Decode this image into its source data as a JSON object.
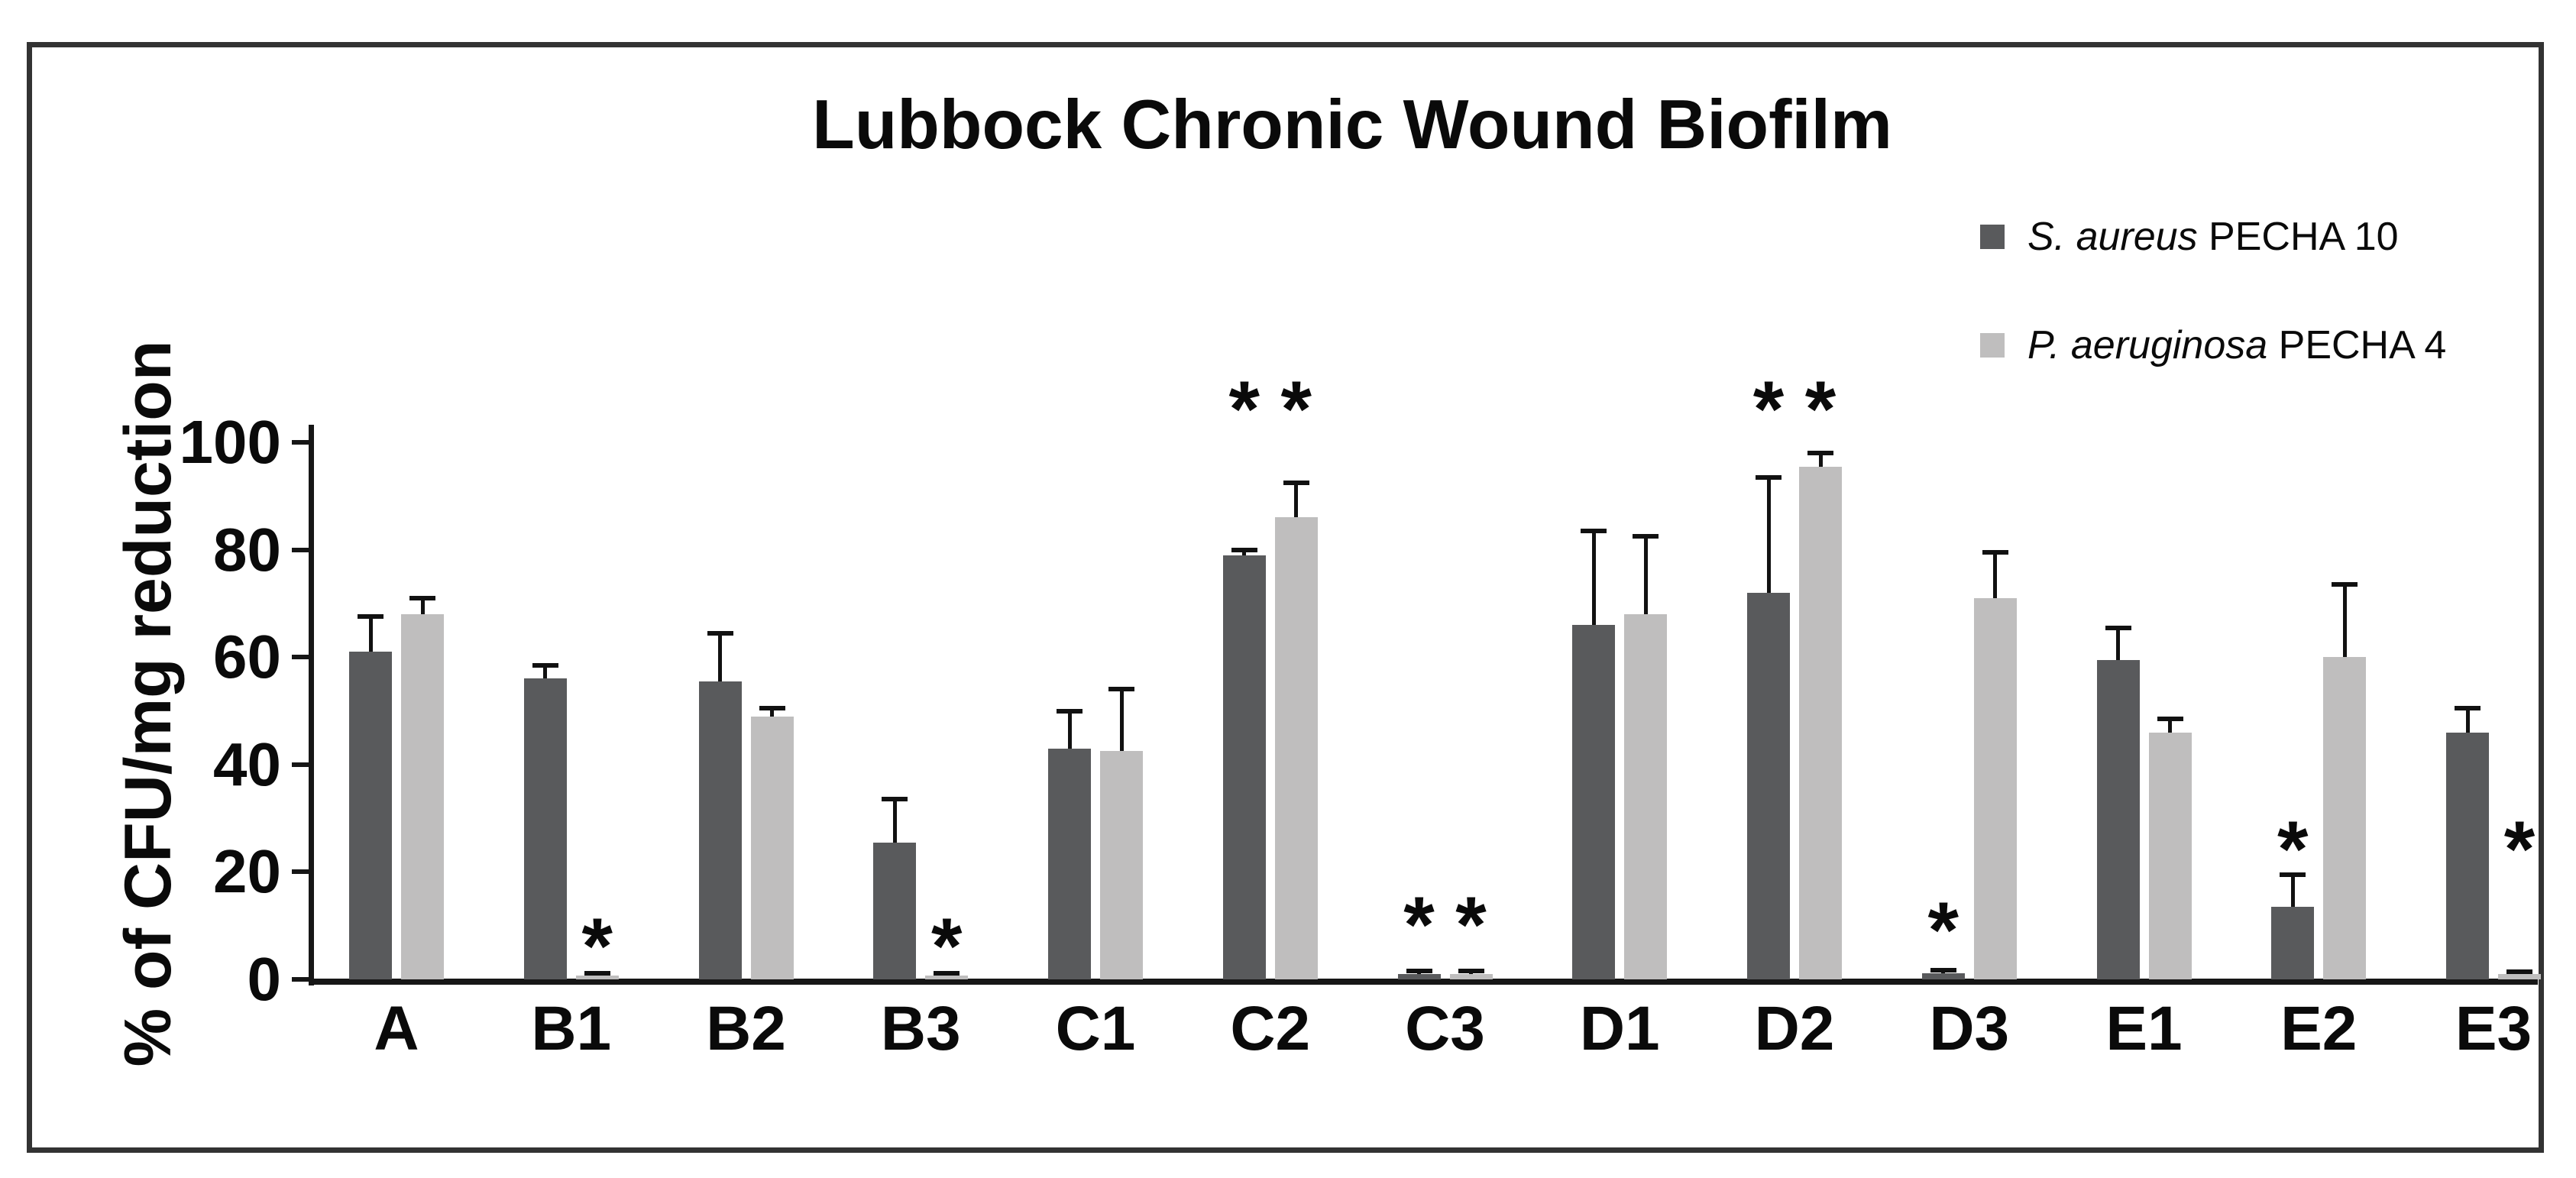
{
  "figure": {
    "title": "Lubbock Chronic Wound Biofilm",
    "background_color": "#ffffff",
    "frame_border_color": "#333333",
    "axis_color": "#161616",
    "text_color": "#0a0a0a"
  },
  "chart_data": {
    "type": "bar",
    "title": "Lubbock Chronic Wound Biofilm",
    "xlabel": "",
    "ylabel": "% of CFU/mg reduction",
    "ylim": [
      0,
      100
    ],
    "yticks": [
      0,
      20,
      40,
      60,
      80,
      100
    ],
    "grid": false,
    "legend_position": "top-right",
    "error_bars": "upper, with caps",
    "significance_marker": "*",
    "categories": [
      "A",
      "B1",
      "B2",
      "B3",
      "C1",
      "C2",
      "C3",
      "D1",
      "D2",
      "D3",
      "E1",
      "E2",
      "E3"
    ],
    "series": [
      {
        "name": "S. aureus PECHA 10",
        "name_italic": "S. aureus",
        "name_rest": " PECHA 10",
        "color": "#595a5c",
        "values": [
          61,
          56,
          55.5,
          25.5,
          43,
          79,
          1,
          66,
          72,
          1.2,
          59.5,
          13.5,
          46
        ],
        "errors": [
          6.5,
          2.5,
          9,
          8,
          7,
          1,
          0.5,
          17.5,
          21.5,
          0.5,
          6,
          6,
          4.5
        ],
        "significance_y": [
          null,
          null,
          null,
          null,
          null,
          107,
          11,
          null,
          107,
          10,
          null,
          25,
          null
        ]
      },
      {
        "name": "P. aeruginosa PECHA 4",
        "name_italic": "P. aeruginosa",
        "name_rest": " PECHA 4",
        "color": "#bfbebe",
        "values": [
          68,
          0.7,
          49,
          0.7,
          42.5,
          86,
          1,
          68,
          95.5,
          71,
          46,
          60,
          1
        ],
        "errors": [
          3,
          0.4,
          1.5,
          0.4,
          11.5,
          6.5,
          0.5,
          14.5,
          2.5,
          8.5,
          2.5,
          13.5,
          0.4
        ],
        "significance_y": [
          null,
          7,
          null,
          7,
          null,
          107,
          11,
          null,
          107,
          null,
          null,
          null,
          25
        ]
      }
    ]
  }
}
